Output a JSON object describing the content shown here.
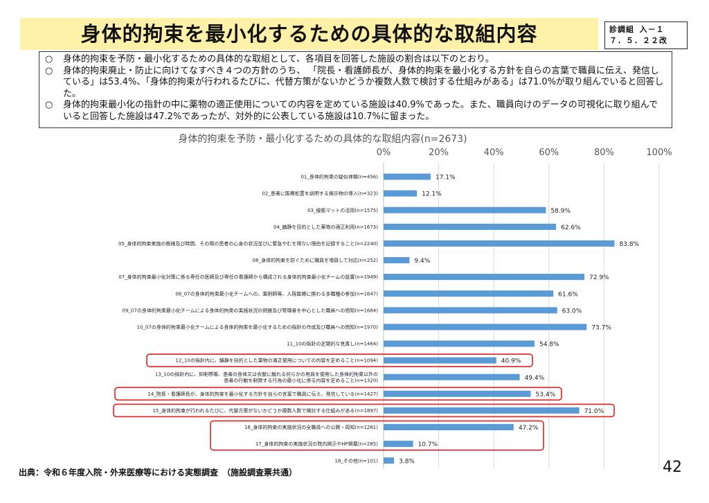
{
  "header": {
    "title": "身体的拘束を最小化するための具体的な取組内容",
    "badge_line1": "診調組 入－１",
    "badge_line2": "７．５．２２改"
  },
  "summary": {
    "bullet": "○",
    "items": [
      "身体的拘束を予防・最小化するための具体的な取組として、各項目を回答した施設の割合は以下のとおり。",
      "身体的拘束廃止・防止に向けてなすべき４つの方針のうち、 「院長・看護師長が、身体的拘束を最小化する方針を自らの言葉で職員に伝え、発信している」は53.4%、「身体的拘束が行われるたびに、代替方策がないかどうか複数人数で検討する仕組みがある」は71.0%が取り組んでいると回答した。",
      "身体的拘束最小化の指針の中に薬物の適正使用についての内容を定めている施設は40.9%であった。また、職員向けのデータの可視化に取り組んでいると回答した施設は47.2%であったが、対外的に公表している施設は10.7%に留まった。"
    ]
  },
  "chart_data": {
    "type": "bar",
    "orientation": "horizontal",
    "title": "身体的拘束を予防・最小化するための具体的な取組内容(n=2673)",
    "xlim": [
      0,
      100
    ],
    "x_ticks": [
      "0%",
      "20%",
      "40%",
      "60%",
      "80%",
      "100%"
    ],
    "bar_color": "#5b9bd5",
    "highlight_color": "#e02020",
    "categories": [
      "01_身体的拘束の疑似体験(n=456)",
      "02_患者に医療処置を説明する掲示物の導入(n=323)",
      "03_緩衝マットの活用(n=1575)",
      "04_鎮静を目的とした薬物の適正利用(n=1673)",
      "05_身体的拘束実施の態様及び時間、その際の患者の心身の状況並びに緊急やむを得ない理由を記録すること(n=2240)",
      "06_身体的拘束を防ぐために職員を増員して対応(n=252)",
      "07_身体的拘束最小化対策に係る専任の医師及び専任の看護師から構成される身体的拘束最小化チームの設置(n=1949)",
      "08_07の身体的拘束最小化チームへの、薬剤師等、入院医療に携わる多職種の参加(n=1647)",
      "09_07の身体的拘束最小化チームによる身体的拘束の実施状況の把握及び管理者を中心とした職員への周知(n=1684)",
      "10_07の身体的拘束最小化チームによる身体的拘束を最小化するための指針の作成及び職員への周知(n=1970)",
      "11_10の指針の定期的な見直し(n=1464)",
      "12_10の指針内に、鎮静を目的とした薬物の適正使用についての内容を定めること(n=1094)",
      "13_10の指針内に、抑制帯等、患者の身体又は衣服に触れる何らかの用具を使用した身体的拘束以外の患者の行動を制限する行為の最小化に係る内容を定めること(n=1320)",
      "14_院長・看護師長が、身体的拘束を最小化する方針を自らの言葉で職員に伝え、発信している(n=1427)",
      "15_身体的拘束が行われるたびに、代替方策がないかどうか複数人数で検討する仕組みがある(n=1897)",
      "16_身体的拘束の実施状況の全職員への公開・周知(n=1261)",
      "17_身体的拘束の実施状況の院内掲示やHP掲載(n=285)",
      "18_その他(n=101)"
    ],
    "values": [
      17.1,
      12.1,
      58.9,
      62.6,
      83.8,
      9.4,
      72.9,
      61.6,
      63.0,
      73.7,
      54.8,
      40.9,
      49.4,
      53.4,
      71.0,
      47.2,
      10.7,
      3.8
    ],
    "value_labels": [
      "17.1%",
      "12.1%",
      "58.9%",
      "62.6%",
      "83.8%",
      "9.4%",
      "72.9%",
      "61.6%",
      "63.0%",
      "73.7%",
      "54.8%",
      "40.9%",
      "49.4%",
      "53.4%",
      "71.0%",
      "47.2%",
      "10.7%",
      "3.8%"
    ],
    "highlighted_groups": [
      [
        11
      ],
      [
        13
      ],
      [
        14
      ],
      [
        15,
        16
      ]
    ],
    "grid": true
  },
  "footer": {
    "source": "出典：令和６年度入院・外来医療等における実態調査　（施設調査票共通）",
    "page_number": "42"
  }
}
